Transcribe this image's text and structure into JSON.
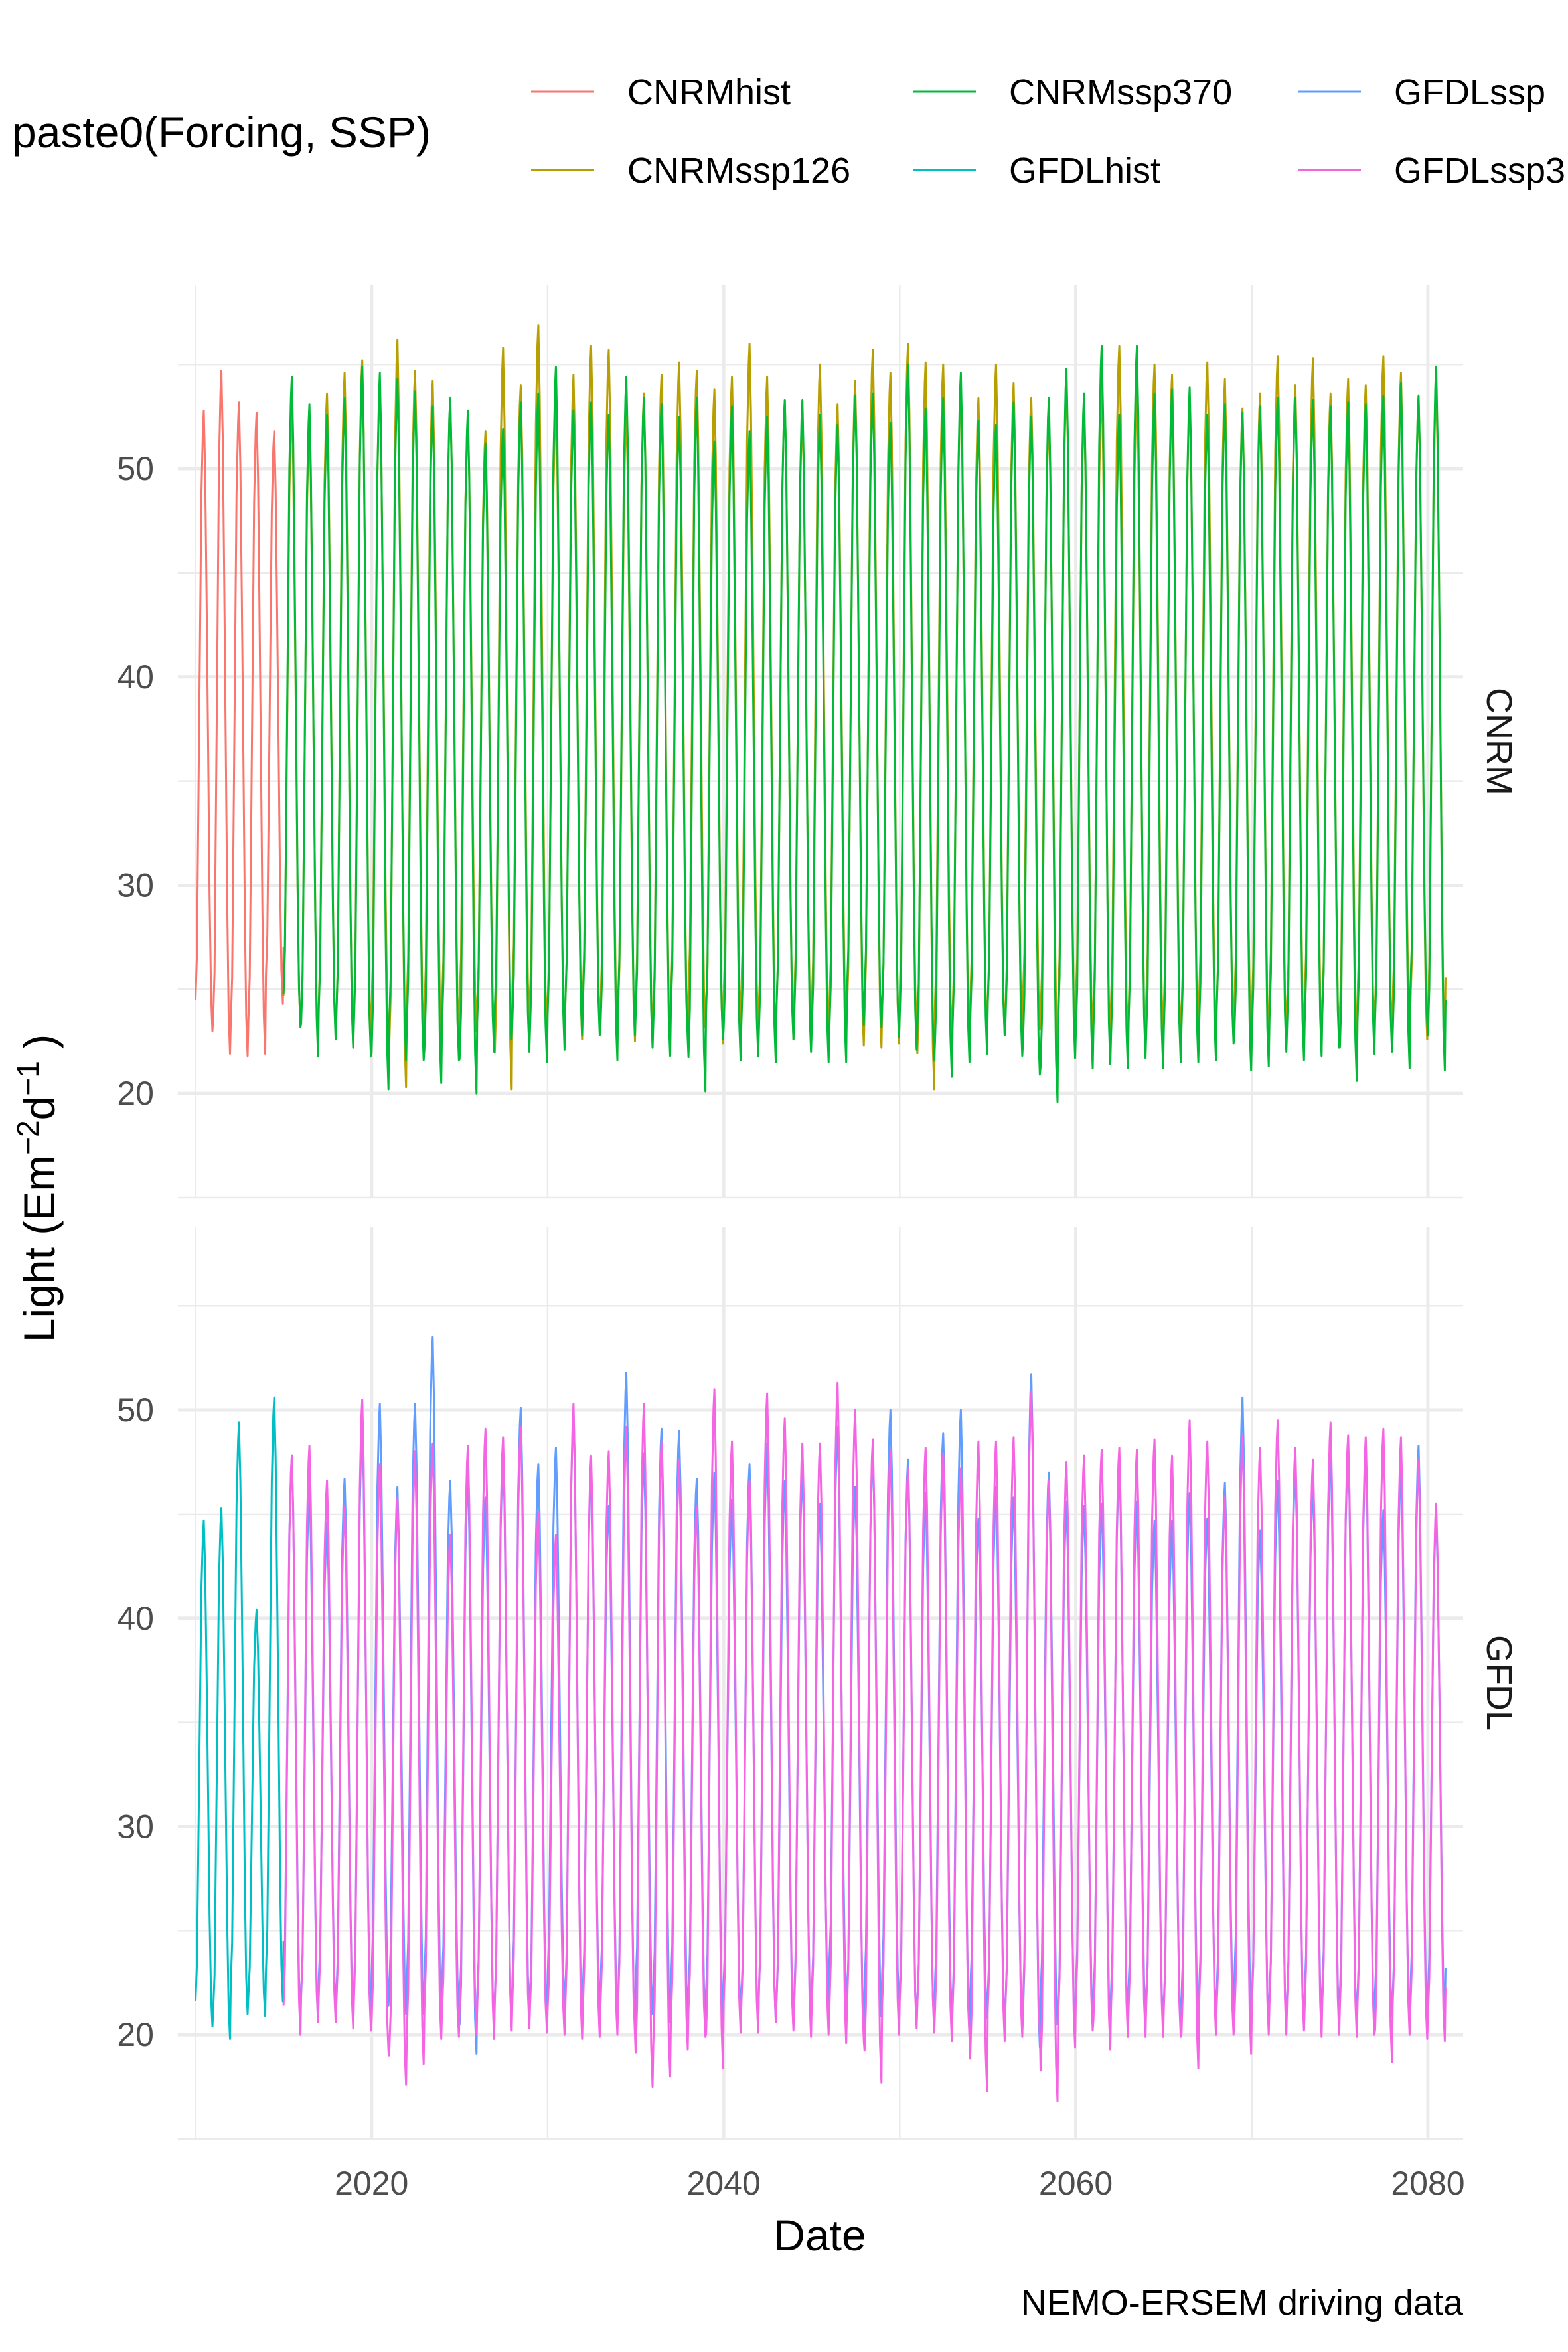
{
  "chart_data": {
    "type": "line",
    "legend": {
      "title": "paste0(Forcing, SSP)",
      "placement": "top",
      "entries": [
        {
          "label": "CNRMhist",
          "color": "#F8766D"
        },
        {
          "label": "CNRMssp126",
          "color": "#B79F00"
        },
        {
          "label": "CNRMssp370",
          "color": "#00BA38"
        },
        {
          "label": "GFDLhist",
          "color": "#00BFC4"
        },
        {
          "label": "GFDLssp",
          "color": "#619CFF"
        },
        {
          "label": "GFDLssp3",
          "color": "#F564E3"
        }
      ]
    },
    "xlabel": "Date",
    "ylabel_main": "Light (Em",
    "ylabel_exp1": "−2",
    "ylabel_mid": "d",
    "ylabel_exp2": "−1",
    "ylabel_end": " )",
    "caption": "NEMO-ERSEM driving data",
    "x_range": [
      2009,
      2082
    ],
    "x_ticks": [
      "2020",
      "2040",
      "2060",
      "2080"
    ],
    "x_tick_values": [
      2020,
      2040,
      2060,
      2080
    ],
    "grid": true,
    "panels": [
      {
        "strip": "CNRM",
        "ylim": [
          15,
          58.8
        ],
        "y_ticks": [
          "20",
          "30",
          "40",
          "50"
        ],
        "y_tick_values": [
          20,
          30,
          40,
          50
        ],
        "series": [
          {
            "name": "CNRMhist",
            "color": "#F8766D",
            "start_year": 2010,
            "end_year": 2015,
            "peaks": [
              52.8,
              54.7,
              53.2,
              52.7,
              51.8
            ],
            "troughs": [
              23.0,
              21.9,
              21.8,
              21.9,
              24.3
            ]
          },
          {
            "name": "CNRMssp126",
            "color": "#B79F00",
            "start_year": 2015,
            "end_year": 2081,
            "peaks": [
              53.1,
              52.4,
              53.6,
              54.6,
              55.2,
              54.1,
              56.2,
              54.7,
              54.2,
              53.3,
              52.6,
              51.8,
              55.8,
              54.0,
              56.9,
              53.3,
              54.5,
              55.9,
              55.7,
              52.8,
              53.6,
              54.5,
              55.1,
              54.7,
              53.8,
              54.4,
              56.0,
              54.4,
              53.3,
              52.7,
              55.0,
              53.1,
              54.2,
              55.7,
              54.6,
              56.0,
              55.1,
              55.0,
              54.0,
              53.4,
              55.0,
              54.1,
              53.4,
              52.6,
              54.2,
              52.8,
              54.0,
              55.9,
              54.0,
              55.0,
              54.5,
              53.4,
              55.1,
              54.3,
              52.9,
              53.6,
              55.4,
              54.0,
              55.3,
              53.6,
              54.3,
              54.0,
              55.4,
              54.6,
              53.5,
              54.1
            ],
            "troughs": [
              23.2,
              22.2,
              22.8,
              22.2,
              22.5,
              22.6,
              20.3,
              22.7,
              22.3,
              22.8,
              23.0,
              22.8,
              20.2,
              23.5,
              22.9,
              22.8,
              22.6,
              23.1,
              22.4,
              22.5,
              22.9,
              22.3,
              22.9,
              23.2,
              22.4,
              23.1,
              23.3,
              22.5,
              22.6,
              22.9,
              22.5,
              22.7,
              22.3,
              22.2,
              22.4,
              23.1,
              20.2,
              22.6,
              22.2,
              22.7,
              22.8,
              22.4,
              23.1,
              22.2,
              22.8,
              22.9,
              22.5,
              22.7,
              22.3,
              22.8,
              22.6,
              22.3,
              22.9,
              22.5,
              22.7,
              22.4,
              22.9,
              22.5,
              22.8,
              22.6,
              22.3,
              23.0,
              22.5,
              22.8,
              22.6,
              22.4
            ]
          },
          {
            "name": "CNRMssp370",
            "color": "#00BA38",
            "start_year": 2015,
            "end_year": 2081,
            "peaks": [
              54.4,
              53.1,
              52.6,
              53.4,
              54.9,
              54.6,
              54.3,
              53.7,
              53.0,
              53.4,
              52.8,
              51.2,
              51.9,
              53.2,
              53.6,
              54.9,
              52.8,
              53.2,
              52.6,
              54.4,
              53.4,
              53.1,
              52.5,
              53.4,
              51.3,
              53.0,
              51.8,
              52.5,
              53.3,
              53.3,
              52.6,
              52.1,
              53.5,
              53.6,
              52.2,
              55.0,
              52.9,
              53.4,
              54.6,
              52.3,
              52.1,
              53.2,
              52.5,
              53.4,
              54.8,
              53.6,
              55.9,
              52.6,
              55.9,
              53.6,
              53.8,
              53.9,
              52.6,
              53.1,
              52.7,
              53.0,
              53.4,
              53.4,
              53.3,
              53.0,
              53.2,
              53.1,
              53.5,
              54.1,
              53.5,
              54.9
            ],
            "troughs": [
              23.2,
              21.8,
              22.6,
              22.2,
              21.8,
              20.2,
              21.6,
              21.6,
              20.5,
              21.6,
              20.0,
              22.0,
              22.6,
              22.0,
              21.5,
              22.1,
              22.8,
              22.8,
              21.6,
              22.8,
              22.2,
              21.8,
              22.6,
              20.1,
              22.6,
              21.6,
              21.8,
              21.5,
              22.6,
              22.0,
              21.5,
              21.5,
              23.3,
              23.2,
              22.7,
              22.1,
              21.6,
              20.8,
              21.5,
              21.9,
              22.8,
              21.8,
              20.9,
              19.6,
              21.7,
              21.2,
              21.4,
              21.2,
              21.7,
              21.2,
              21.5,
              21.5,
              21.6,
              22.4,
              21.1,
              21.3,
              22.0,
              21.6,
              21.8,
              22.2,
              20.6,
              21.9,
              22.0,
              21.2,
              23.4,
              21.1
            ]
          }
        ]
      },
      {
        "strip": "GFDL",
        "ylim": [
          15,
          58.8
        ],
        "y_ticks": [
          "20",
          "30",
          "40",
          "50"
        ],
        "y_tick_values": [
          20,
          30,
          40,
          50
        ],
        "series": [
          {
            "name": "GFDLhist",
            "color": "#00BFC4",
            "start_year": 2010,
            "end_year": 2015,
            "peaks": [
              44.7,
              45.3,
              49.4,
              40.4,
              50.6
            ],
            "troughs": [
              20.4,
              19.8,
              21.0,
              20.9,
              21.6
            ]
          },
          {
            "name": "GFDLssp",
            "color": "#619CFF",
            "start_year": 2015,
            "end_year": 2081,
            "peaks": [
              47.8,
              46.5,
              44.6,
              46.7,
              49.4,
              50.3,
              46.3,
              50.3,
              53.5,
              46.6,
              47.0,
              45.8,
              48.1,
              50.1,
              47.4,
              48.2,
              50.0,
              47.2,
              45.4,
              51.8,
              47.9,
              49.1,
              49.0,
              46.7,
              47.0,
              45.7,
              47.4,
              48.4,
              46.6,
              47.2,
              45.5,
              49.2,
              46.3,
              48.0,
              50.0,
              47.6,
              46.0,
              48.9,
              50.0,
              44.8,
              46.3,
              45.8,
              51.7,
              47.0,
              45.6,
              45.4,
              45.5,
              47.6,
              45.6,
              44.7,
              44.7,
              46.0,
              44.8,
              46.5,
              50.6,
              44.2,
              46.6,
              47.3,
              46.5,
              48.1,
              48.4,
              48.1,
              45.2,
              47.4,
              48.3,
              45.0
            ],
            "troughs": [
              21.0,
              20.6,
              21.5,
              20.6,
              20.8,
              21.4,
              21.0,
              21.0,
              20.8,
              21.2,
              19.1,
              20.6,
              20.4,
              21.1,
              20.6,
              21.5,
              20.5,
              20.9,
              21.3,
              20.2,
              21.0,
              20.6,
              20.9,
              20.8,
              20.7,
              21.3,
              20.3,
              20.7,
              20.3,
              20.4,
              20.8,
              22.1,
              20.5,
              20.9,
              21.4,
              20.5,
              20.3,
              21.0,
              20.0,
              20.8,
              20.6,
              20.1,
              19.4,
              20.5,
              20.0,
              21.1,
              20.5,
              20.7,
              21.1,
              20.6,
              20.4,
              20.5,
              20.9,
              20.7,
              21.0,
              20.7,
              20.5,
              20.3,
              20.7,
              20.8,
              20.6,
              20.4,
              20.9,
              20.5,
              20.6,
              20.8
            ]
          },
          {
            "name": "GFDLssp3",
            "color": "#F564E3",
            "start_year": 2015,
            "end_year": 2081,
            "peaks": [
              47.8,
              48.3,
              46.6,
              45.4,
              50.5,
              47.4,
              45.8,
              48.0,
              48.4,
              44.0,
              48.3,
              49.1,
              48.7,
              49.2,
              45.1,
              44.0,
              50.3,
              47.8,
              48.0,
              49.2,
              50.3,
              48.5,
              47.6,
              45.4,
              51.0,
              48.5,
              46.6,
              50.8,
              49.6,
              48.4,
              48.4,
              51.3,
              50.0,
              48.6,
              48.1,
              47.2,
              48.2,
              47.9,
              47.2,
              48.5,
              48.5,
              48.7,
              50.9,
              46.6,
              47.5,
              47.8,
              48.1,
              48.2,
              48.1,
              48.6,
              47.8,
              49.5,
              48.5,
              45.8,
              48.8,
              48.2,
              49.5,
              48.2,
              47.6,
              49.4,
              48.8,
              48.7,
              49.1,
              48.7,
              47.6,
              45.5
            ],
            "troughs": [
              20.0,
              20.6,
              20.6,
              20.3,
              20.2,
              19.2,
              17.6,
              18.6,
              19.8,
              19.9,
              20.0,
              19.8,
              20.2,
              20.3,
              20.1,
              20.0,
              19.8,
              19.9,
              20.0,
              20.0,
              17.5,
              18.0,
              19.3,
              19.9,
              18.4,
              20.1,
              20.1,
              20.6,
              20.2,
              19.9,
              20.0,
              19.6,
              19.7,
              17.7,
              20.0,
              20.3,
              20.1,
              19.7,
              19.9,
              17.3,
              19.7,
              19.9,
              20.0,
              16.8,
              19.4,
              20.2,
              19.3,
              19.9,
              19.9,
              19.9,
              19.9,
              18.4,
              20.0,
              20.0,
              19.1,
              20.0,
              20.0,
              20.2,
              19.9,
              20.0,
              19.9,
              20.0,
              18.7,
              20.0,
              19.8,
              19.7
            ]
          }
        ]
      }
    ]
  }
}
